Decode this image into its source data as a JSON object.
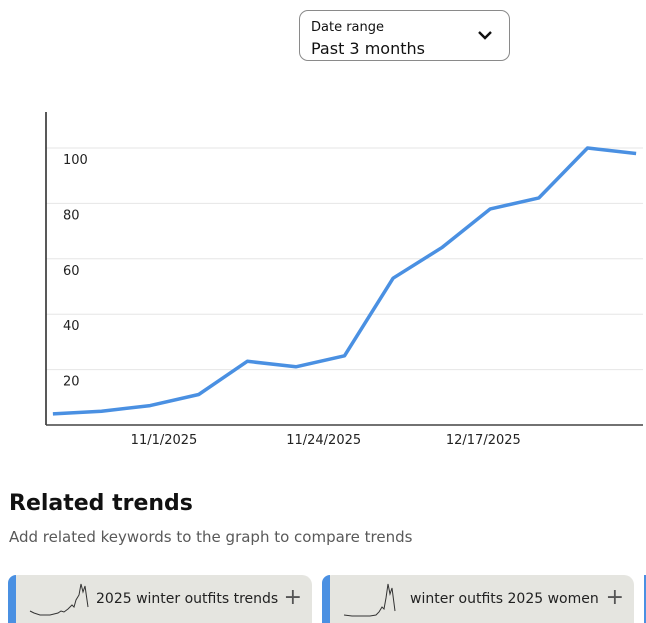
{
  "date_range": {
    "label": "Date range",
    "value": "Past 3 months",
    "icon": "chevron-down-icon"
  },
  "chart_data": {
    "type": "line",
    "title": "",
    "xlabel": "",
    "ylabel": "",
    "ylim": [
      0,
      113
    ],
    "xlim": [
      "2025-10-15",
      "2026-01-09"
    ],
    "y_ticks": [
      "20",
      "40",
      "60",
      "80",
      "100"
    ],
    "x_tick_labels": [
      {
        "date": "2025-11-01",
        "label": "11/1/2025"
      },
      {
        "date": "2025-11-24",
        "label": "11/24/2025"
      },
      {
        "date": "2025-12-17",
        "label": "12/17/2025"
      }
    ],
    "grid": "horizontal",
    "line_color": "#4a90e2",
    "x": [
      "2025-10-16",
      "2025-10-23",
      "2025-10-30",
      "2025-11-06",
      "2025-11-13",
      "2025-11-20",
      "2025-11-27",
      "2025-12-04",
      "2025-12-11",
      "2025-12-18",
      "2025-12-25",
      "2026-01-01",
      "2026-01-08"
    ],
    "values": [
      4,
      5,
      7,
      11,
      23,
      21,
      25,
      53,
      64,
      78,
      82,
      100,
      98
    ]
  },
  "related": {
    "title": "Related trends",
    "subtitle": "Add related keywords to the graph to compare trends",
    "items": [
      {
        "keyword": "2025 winter outfits trends",
        "icon": "plus-icon",
        "accent": "#4a90e2"
      },
      {
        "keyword": "winter outfits 2025 women",
        "icon": "plus-icon",
        "accent": "#4a90e2"
      },
      {
        "keyword": "",
        "icon": "plus-icon",
        "accent": "#4a90e2"
      }
    ]
  }
}
